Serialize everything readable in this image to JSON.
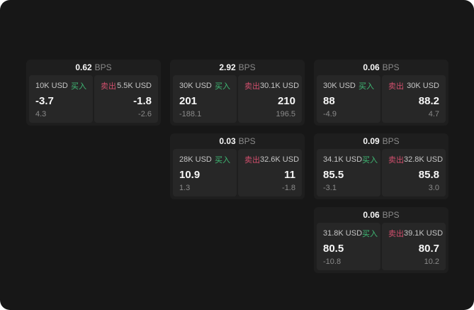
{
  "labels": {
    "bps_unit": "BPS",
    "buy": "买入",
    "sell": "卖出"
  },
  "colors": {
    "frame_bg": "#171717",
    "card_bg": "#1e1e1e",
    "panel_bg": "#272727",
    "buy_green": "#3fba75",
    "sell_red": "#d14f6d",
    "text_primary": "#f7f7f7",
    "text_amount": "#c6c6c6",
    "text_muted": "#8a8a8a"
  },
  "cards": [
    {
      "bps": "0.62",
      "buy": {
        "amount": "10K USD",
        "value": "-3.7",
        "sub": "4.3"
      },
      "sell": {
        "amount": "5.5K USD",
        "value": "-1.8",
        "sub": "-2.6"
      }
    },
    {
      "bps": "2.92",
      "buy": {
        "amount": "30K USD",
        "value": "201",
        "sub": "-188.1"
      },
      "sell": {
        "amount": "30.1K USD",
        "value": "210",
        "sub": "196.5"
      }
    },
    {
      "bps": "0.06",
      "buy": {
        "amount": "30K USD",
        "value": "88",
        "sub": "-4.9"
      },
      "sell": {
        "amount": "30K USD",
        "value": "88.2",
        "sub": "4.7"
      }
    },
    {
      "bps": "0.03",
      "buy": {
        "amount": "28K USD",
        "value": "10.9",
        "sub": "1.3"
      },
      "sell": {
        "amount": "32.6K USD",
        "value": "11",
        "sub": "-1.8"
      }
    },
    {
      "bps": "0.09",
      "buy": {
        "amount": "34.1K USD",
        "value": "85.5",
        "sub": "-3.1"
      },
      "sell": {
        "amount": "32.8K USD",
        "value": "85.8",
        "sub": "3.0"
      }
    },
    {
      "bps": "0.06",
      "buy": {
        "amount": "31.8K USD",
        "value": "80.5",
        "sub": "-10.8"
      },
      "sell": {
        "amount": "39.1K USD",
        "value": "80.7",
        "sub": "10.2"
      }
    }
  ]
}
